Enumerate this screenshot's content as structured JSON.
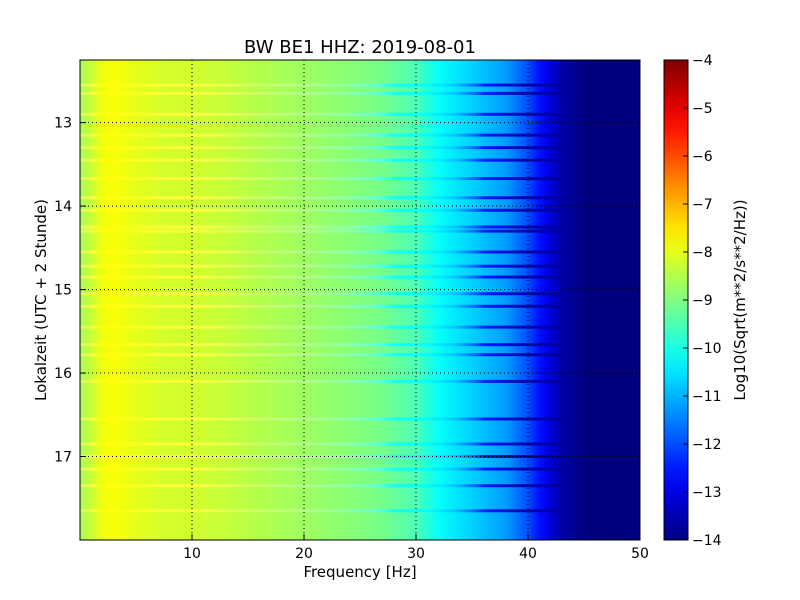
{
  "chart_data": {
    "type": "heatmap",
    "title": "BW BE1 HHZ: 2019-08-01",
    "xlabel": "Frequency [Hz]",
    "ylabel": "Lokalzeit (UTC + 2 Stunde)",
    "xlim": [
      0,
      50
    ],
    "ylim": [
      12.25,
      18.0
    ],
    "y_inverted": true,
    "xticks": [
      10,
      20,
      30,
      40,
      50
    ],
    "yticks": [
      13,
      14,
      15,
      16,
      17
    ],
    "grid": true,
    "colorbar": {
      "label": "Log10(Sqrt(m**2/s**2/Hz))",
      "range": [
        -14,
        -4
      ],
      "ticks": [
        -4,
        -5,
        -6,
        -7,
        -8,
        -9,
        -10,
        -11,
        -12,
        -13,
        -14
      ],
      "colormap": "jet"
    },
    "spectrum_profile": {
      "frequency_hz": [
        0,
        1,
        2,
        3,
        5,
        8,
        10,
        13,
        16,
        20,
        24,
        27,
        30,
        32,
        35,
        38,
        40,
        41,
        42,
        43,
        45,
        50
      ],
      "log10_amplitude": [
        -8.6,
        -8.3,
        -7.9,
        -7.8,
        -8.0,
        -8.2,
        -8.2,
        -8.3,
        -8.5,
        -8.7,
        -8.9,
        -9.1,
        -9.5,
        -10.2,
        -10.7,
        -11.2,
        -12.0,
        -12.6,
        -13.1,
        -13.6,
        -14.0,
        -14.0
      ]
    },
    "bright_line_times_hours": [
      12.55,
      12.65,
      12.9,
      13.15,
      13.3,
      13.45,
      13.67,
      13.9,
      14.05,
      14.25,
      14.3,
      14.55,
      14.72,
      14.85,
      15.05,
      15.2,
      15.45,
      15.66,
      15.78,
      16.1,
      16.55,
      16.85,
      17.0,
      17.15,
      17.35,
      17.65
    ]
  }
}
